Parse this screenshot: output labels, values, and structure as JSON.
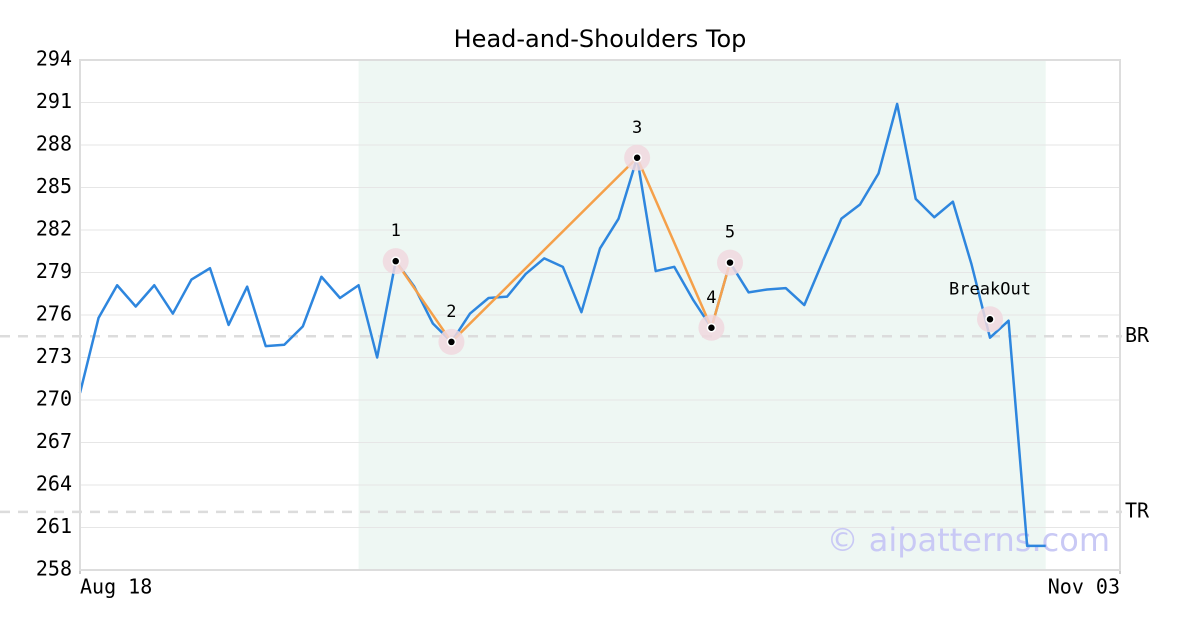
{
  "chart_data": {
    "type": "line",
    "title": "Head-and-Shoulders Top",
    "x": [
      0,
      1,
      2,
      3,
      4,
      5,
      6,
      7,
      8,
      9,
      10,
      11,
      12,
      13,
      14,
      15,
      16,
      17,
      18,
      19,
      20,
      21,
      22,
      23,
      24,
      25,
      26,
      27,
      28,
      29,
      30,
      31,
      32,
      33,
      34,
      35,
      36,
      37,
      38,
      39,
      40,
      41,
      42,
      43,
      44,
      45,
      46,
      47,
      48,
      49,
      50,
      51,
      52
    ],
    "values": [
      270.5,
      275.8,
      278.1,
      276.6,
      278.1,
      276.1,
      278.5,
      279.3,
      275.3,
      278,
      273.8,
      273.9,
      275.2,
      278.7,
      277.2,
      278.1,
      273,
      279.8,
      278,
      275.4,
      274.1,
      276.1,
      277.2,
      277.3,
      278.9,
      280,
      279.4,
      276.2,
      280.7,
      282.8,
      287.1,
      279.1,
      279.4,
      277.1,
      275.1,
      279.7,
      277.6,
      277.8,
      277.9,
      276.7,
      279.8,
      282.8,
      283.8,
      286,
      290.9,
      284.2,
      282.9,
      284,
      279.6,
      274.4,
      275.6,
      259.7,
      259.7
    ],
    "color": "#2e86de",
    "xlim": [
      0,
      56
    ],
    "xticks": [
      {
        "value": 0,
        "label": "Aug 18"
      },
      {
        "value": 56,
        "label": "Nov 03"
      }
    ],
    "ylim": [
      258,
      294
    ],
    "yticks": [
      258,
      261,
      264,
      267,
      270,
      273,
      276,
      279,
      282,
      285,
      288,
      291,
      294
    ],
    "grid": true,
    "highlight": [
      15,
      52
    ],
    "pattern": {
      "color": "#f5a04a",
      "points": [
        {
          "label": "1",
          "x": 17,
          "y": 279.8
        },
        {
          "label": "2",
          "x": 20,
          "y": 274.1
        },
        {
          "label": "3",
          "x": 30,
          "y": 287.1
        },
        {
          "label": "4",
          "x": 34,
          "y": 275.1
        },
        {
          "label": "5",
          "x": 35,
          "y": 279.7
        }
      ]
    },
    "breakout": {
      "label": "BreakOut",
      "x": 49,
      "y": 275.7
    },
    "levels": [
      {
        "label": "BR",
        "value": 274.5
      },
      {
        "label": "TR",
        "value": 262.1
      }
    ],
    "watermark": "© aipatterns.com"
  }
}
